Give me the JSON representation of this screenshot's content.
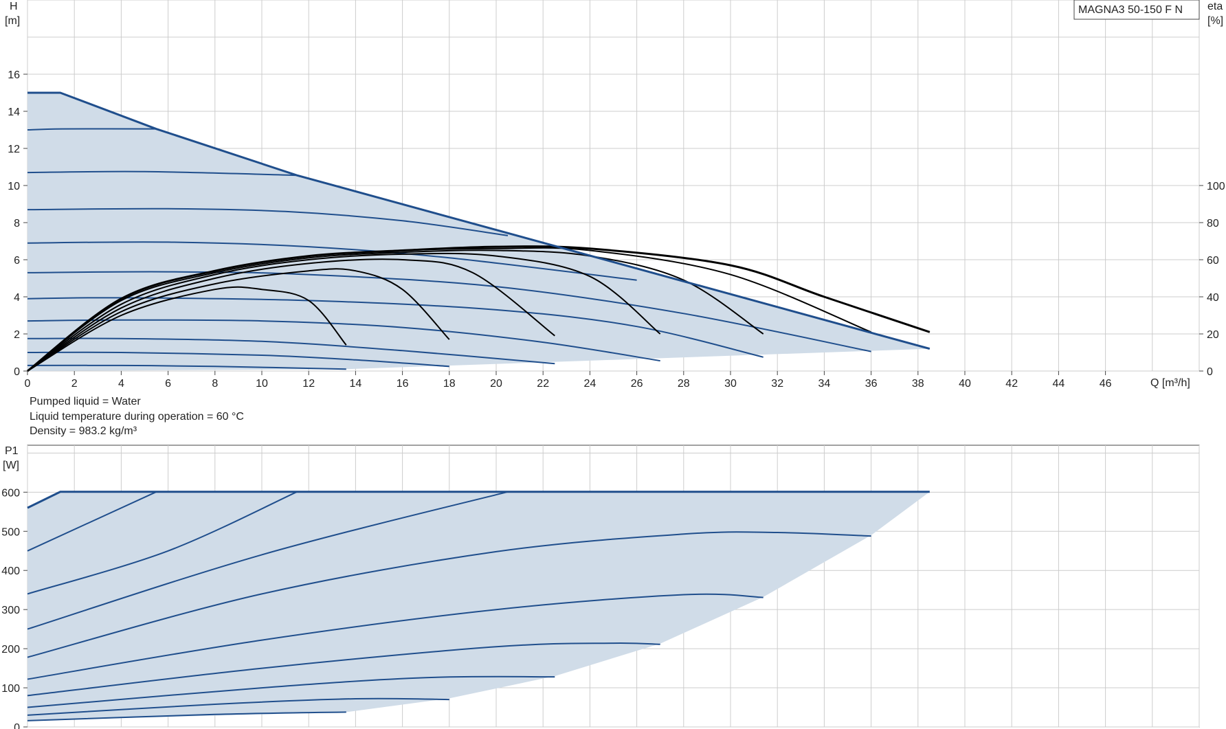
{
  "product_box": {
    "label": "MAGNA3 50-150 F N"
  },
  "notes": [
    "Pumped liquid = Water",
    "Liquid temperature during operation = 60 °C",
    "Density = 983.2 kg/m³"
  ],
  "colors": {
    "envelope": "#1f4e8c",
    "speed_curve": "#1f4e8c",
    "efficiency": "#000000",
    "fill": "#d0dce8",
    "grid": "#cccccc",
    "frame": "#444444"
  },
  "chart_data": [
    {
      "type": "line",
      "name": "head",
      "xlabel": "Q [m³/h]",
      "ylabel_line1": "H",
      "ylabel_line2": "[m]",
      "y2label_line1": "eta",
      "y2label_line2": "[%]",
      "xlim": [
        0,
        50
      ],
      "ylim": [
        0,
        20
      ],
      "y2lim": [
        0,
        200
      ],
      "xticks": [
        0,
        2,
        4,
        6,
        8,
        10,
        12,
        14,
        16,
        18,
        20,
        22,
        24,
        26,
        28,
        30,
        32,
        34,
        36,
        38,
        40,
        42,
        44,
        46
      ],
      "yticks": [
        0,
        2,
        4,
        6,
        8,
        10,
        12,
        14,
        16
      ],
      "y2ticks": [
        0,
        20,
        40,
        60,
        80,
        100
      ],
      "grid": true,
      "envelope": [
        [
          0,
          15
        ],
        [
          1.4,
          15
        ],
        [
          5.5,
          13.05
        ],
        [
          11.5,
          10.55
        ],
        [
          38.5,
          1.2
        ]
      ],
      "speed_curves": [
        {
          "points": [
            [
              0,
              13.0
            ],
            [
              1.5,
              13.05
            ],
            [
              5.5,
              13.05
            ]
          ]
        },
        {
          "points": [
            [
              0,
              10.7
            ],
            [
              5,
              10.75
            ],
            [
              11.5,
              10.55
            ]
          ]
        },
        {
          "points": [
            [
              0,
              8.7
            ],
            [
              6,
              8.75
            ],
            [
              11,
              8.6
            ],
            [
              16,
              8.1
            ],
            [
              20.5,
              7.3
            ]
          ]
        },
        {
          "points": [
            [
              0,
              6.9
            ],
            [
              6,
              6.95
            ],
            [
              12,
              6.7
            ],
            [
              18,
              6.1
            ],
            [
              26,
              4.9
            ]
          ]
        },
        {
          "points": [
            [
              0,
              5.3
            ],
            [
              6,
              5.35
            ],
            [
              12,
              5.2
            ],
            [
              20,
              4.55
            ],
            [
              28,
              3.1
            ],
            [
              36,
              1.05
            ]
          ]
        },
        {
          "points": [
            [
              0,
              3.9
            ],
            [
              4,
              3.95
            ],
            [
              12,
              3.8
            ],
            [
              20,
              3.3
            ],
            [
              26,
              2.4
            ],
            [
              31.4,
              0.75
            ]
          ]
        },
        {
          "points": [
            [
              0,
              2.7
            ],
            [
              4,
              2.75
            ],
            [
              10,
              2.7
            ],
            [
              16,
              2.35
            ],
            [
              22,
              1.55
            ],
            [
              27,
              0.55
            ]
          ]
        },
        {
          "points": [
            [
              0,
              1.75
            ],
            [
              4,
              1.75
            ],
            [
              10,
              1.6
            ],
            [
              16,
              1.1
            ],
            [
              22.5,
              0.4
            ]
          ]
        },
        {
          "points": [
            [
              0,
              1.0
            ],
            [
              4,
              1.0
            ],
            [
              10,
              0.85
            ],
            [
              14,
              0.6
            ],
            [
              18,
              0.25
            ]
          ]
        },
        {
          "points": [
            [
              0,
              0.3
            ],
            [
              4,
              0.3
            ],
            [
              8,
              0.25
            ],
            [
              13.6,
              0.1
            ]
          ]
        }
      ],
      "efficiency_curves": [
        {
          "points": [
            [
              0,
              0
            ],
            [
              4,
              30
            ],
            [
              8,
              44
            ],
            [
              10,
              44
            ],
            [
              12,
              38
            ],
            [
              13.6,
              14
            ]
          ]
        },
        {
          "points": [
            [
              0,
              0
            ],
            [
              4,
              32
            ],
            [
              8,
              47
            ],
            [
              12,
              54
            ],
            [
              14,
              54
            ],
            [
              16,
              44
            ],
            [
              18,
              17
            ]
          ]
        },
        {
          "points": [
            [
              0,
              0
            ],
            [
              4,
              34
            ],
            [
              8,
              50
            ],
            [
              12,
              58
            ],
            [
              16,
              60
            ],
            [
              19,
              53
            ],
            [
              22.5,
              19
            ]
          ]
        },
        {
          "points": [
            [
              0,
              0
            ],
            [
              4,
              36
            ],
            [
              8,
              52
            ],
            [
              12,
              60
            ],
            [
              16,
              63
            ],
            [
              20,
              62
            ],
            [
              24,
              51
            ],
            [
              27,
              20
            ]
          ]
        },
        {
          "points": [
            [
              0,
              0
            ],
            [
              4,
              38
            ],
            [
              8,
              53
            ],
            [
              12,
              61
            ],
            [
              16,
              64
            ],
            [
              20,
              65
            ],
            [
              24,
              62
            ],
            [
              28,
              49
            ],
            [
              31.4,
              20
            ]
          ]
        },
        {
          "points": [
            [
              0,
              0
            ],
            [
              4,
              39
            ],
            [
              8,
              54
            ],
            [
              12,
              62
            ],
            [
              16,
              65
            ],
            [
              20,
              66
            ],
            [
              24,
              65
            ],
            [
              30,
              52
            ],
            [
              36,
              21
            ]
          ]
        },
        {
          "points": [
            [
              0,
              0
            ],
            [
              4,
              39
            ],
            [
              8,
              54
            ],
            [
              12,
              62
            ],
            [
              16,
              65
            ],
            [
              20,
              67
            ],
            [
              24,
              66
            ],
            [
              30,
              57
            ],
            [
              34,
              40
            ],
            [
              38.5,
              21
            ]
          ]
        }
      ]
    },
    {
      "type": "line",
      "name": "power",
      "ylabel_line1": "P1",
      "ylabel_line2": "[W]",
      "xlim": [
        0,
        50
      ],
      "ylim": [
        0,
        720
      ],
      "yticks": [
        0,
        100,
        200,
        300,
        400,
        500,
        600
      ],
      "grid": true,
      "envelope": [
        [
          0,
          560
        ],
        [
          1.4,
          601
        ],
        [
          38.5,
          601
        ],
        [
          36,
          490
        ],
        [
          31.4,
          332
        ],
        [
          27,
          213
        ],
        [
          22.5,
          130
        ],
        [
          18,
          73
        ],
        [
          13.6,
          38
        ]
      ],
      "speed_curves": [
        {
          "points": [
            [
              0,
              450
            ],
            [
              5.5,
              601
            ]
          ]
        },
        {
          "points": [
            [
              0,
              340
            ],
            [
              6,
              450
            ],
            [
              11.5,
              601
            ]
          ]
        },
        {
          "points": [
            [
              0,
              250
            ],
            [
              10,
              440
            ],
            [
              20.5,
              601
            ]
          ]
        },
        {
          "points": [
            [
              0,
              178
            ],
            [
              10,
              340
            ],
            [
              20,
              448
            ],
            [
              28,
              493
            ],
            [
              32,
              497
            ],
            [
              36,
              488
            ]
          ]
        },
        {
          "points": [
            [
              0,
              122
            ],
            [
              10,
              222
            ],
            [
              20,
              300
            ],
            [
              28,
              338
            ],
            [
              31.4,
              331
            ]
          ]
        },
        {
          "points": [
            [
              0,
              80
            ],
            [
              10,
              150
            ],
            [
              20,
              205
            ],
            [
              25,
              214
            ],
            [
              27,
              211
            ]
          ]
        },
        {
          "points": [
            [
              0,
              50
            ],
            [
              10,
              100
            ],
            [
              17,
              126
            ],
            [
              22.5,
              128
            ]
          ]
        },
        {
          "points": [
            [
              0,
              30
            ],
            [
              8,
              58
            ],
            [
              14,
              72
            ],
            [
              18,
              70
            ]
          ]
        },
        {
          "points": [
            [
              0,
              16
            ],
            [
              8,
              32
            ],
            [
              13.6,
              38
            ]
          ]
        }
      ]
    }
  ]
}
